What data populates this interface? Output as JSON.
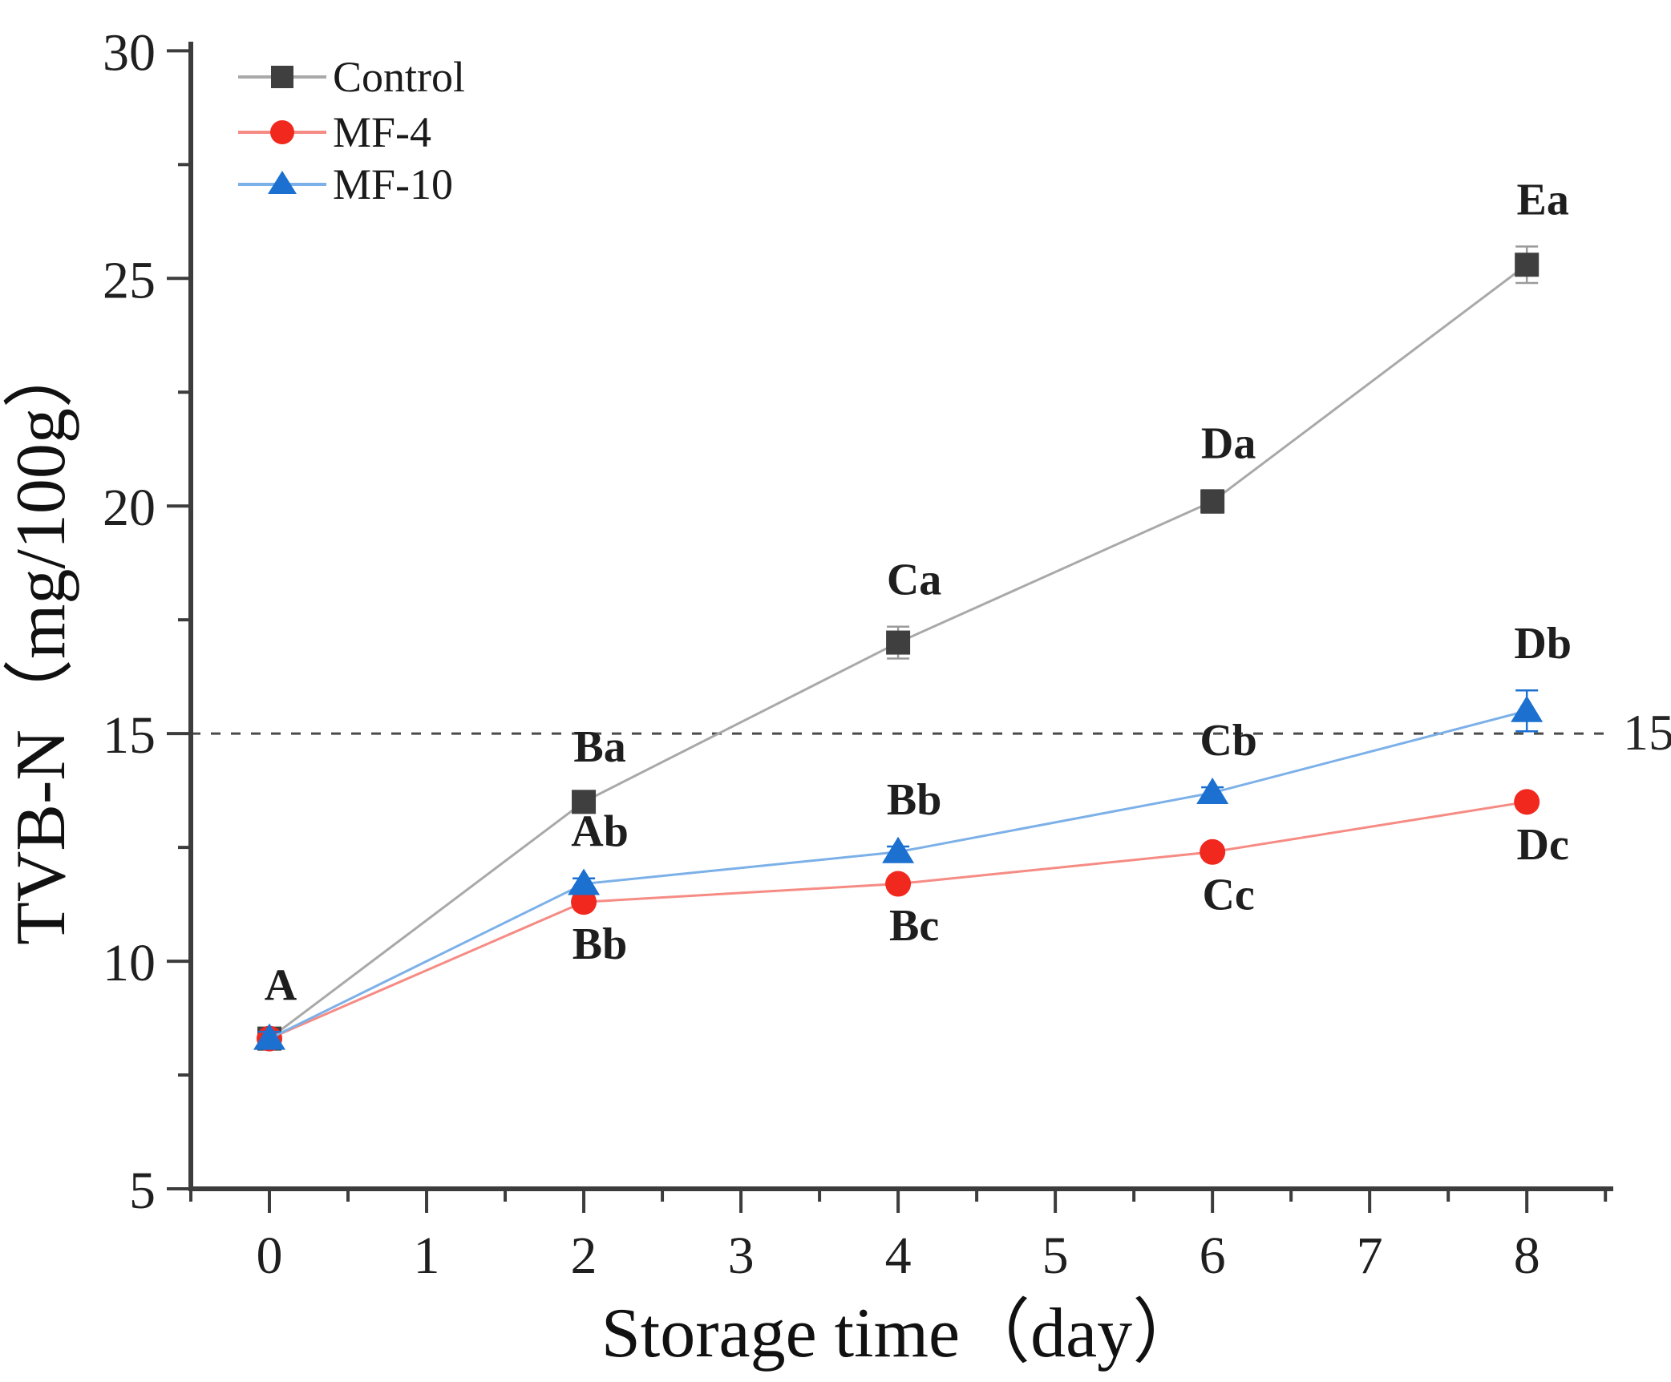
{
  "chart_data": {
    "type": "line",
    "title": "",
    "xlabel": "Storage time（day）",
    "ylabel": "TVB-N（mg/100g）",
    "x": [
      0,
      2,
      4,
      6,
      8
    ],
    "xlim": [
      -0.5,
      8.55
    ],
    "ylim": [
      5,
      30.2
    ],
    "x_major_ticks": [
      0,
      1,
      2,
      3,
      4,
      5,
      6,
      7,
      8
    ],
    "x_minor_ticks": [
      -0.5,
      0.5,
      1.5,
      2.5,
      3.5,
      4.5,
      5.5,
      6.5,
      7.5,
      8.5
    ],
    "y_major_ticks": [
      5,
      10,
      15,
      20,
      25,
      30
    ],
    "y_minor_ticks": [
      7.5,
      12.5,
      17.5,
      22.5,
      27.5
    ],
    "grid": false,
    "legend_position": "top-left",
    "reference_line": {
      "y": 15,
      "label": "15",
      "color": "#4a4a4a"
    },
    "annotation": {
      "text": "A",
      "x": 0,
      "y": 8.3
    },
    "series": [
      {
        "name": "Control",
        "marker": "square",
        "color": "#3f3f3f",
        "line_color": "#a9a9a9",
        "error_color": "#9a9a9a",
        "values": [
          8.3,
          13.5,
          17.0,
          20.1,
          25.3
        ],
        "errors": [
          0.15,
          0.18,
          0.35,
          0.25,
          0.4
        ],
        "point_labels": [
          null,
          "Ba",
          "Ca",
          "Da",
          "Ea"
        ],
        "label_side": "above"
      },
      {
        "name": "MF-4",
        "marker": "circle",
        "color": "#f0281e",
        "line_color": "#f68b84",
        "error_color": "#f0281e",
        "values": [
          8.3,
          11.3,
          11.7,
          12.4,
          13.5
        ],
        "errors": [
          0.12,
          0.1,
          0.1,
          0.12,
          0.12
        ],
        "point_labels": [
          null,
          "Bb",
          "Bc",
          "Cc",
          "Dc"
        ],
        "label_side": "below"
      },
      {
        "name": "MF-10",
        "marker": "triangle",
        "color": "#1b70d0",
        "line_color": "#7cb0e8",
        "error_color": "#1b70d0",
        "values": [
          8.3,
          11.7,
          12.4,
          13.7,
          15.5
        ],
        "errors": [
          0.15,
          0.12,
          0.12,
          0.12,
          0.45
        ],
        "point_labels": [
          null,
          "Ab",
          "Bb",
          "Cb",
          "Db"
        ],
        "label_side": "above"
      }
    ]
  }
}
